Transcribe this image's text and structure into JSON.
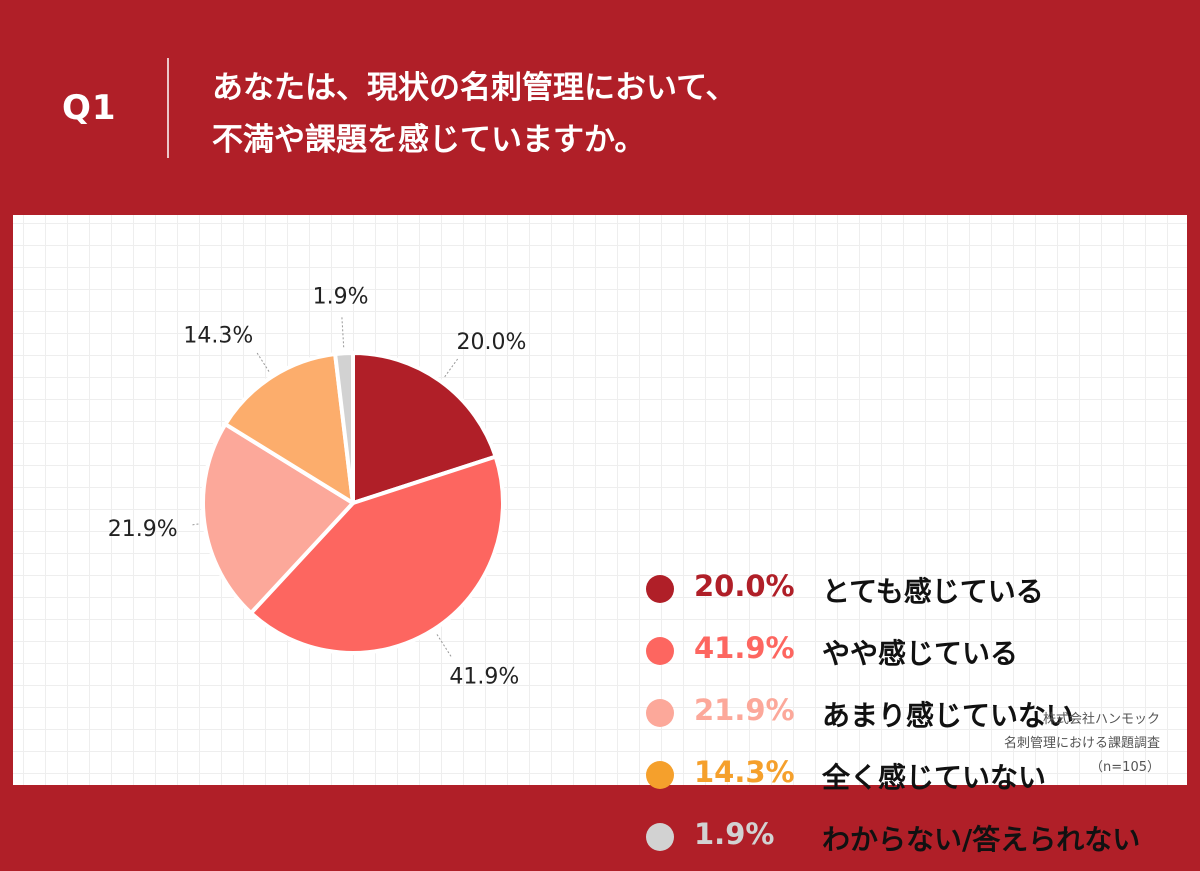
{
  "header": {
    "qnum": "Q1",
    "question_line1": "あなたは、現状の名刺管理において、",
    "question_line2": "不満や課題を感じていますか。"
  },
  "chart_data": {
    "type": "pie",
    "categories": [
      "とても感じている",
      "やや感じている",
      "あまり感じていない",
      "全く感じていない",
      "わからない/答えられない"
    ],
    "values": [
      20.0,
      41.9,
      21.9,
      14.3,
      1.9
    ],
    "value_labels": [
      "20.0%",
      "41.9%",
      "21.9%",
      "14.3%",
      "1.9%"
    ],
    "colors": [
      "#b01f28",
      "#fd6660",
      "#fca89a",
      "#fcad6c",
      "#d2d2d2"
    ],
    "legend_text_colors": [
      "#b01f28",
      "#fd6660",
      "#fca89a",
      "#f5a02c",
      "#d2d2d2"
    ],
    "start_angle": "12 o'clock",
    "direction": "clockwise",
    "legend_position": "right"
  },
  "source": {
    "line1": "株式会社ハンモック",
    "line2": "名刺管理における課題調査",
    "line3": "（n=105）"
  }
}
